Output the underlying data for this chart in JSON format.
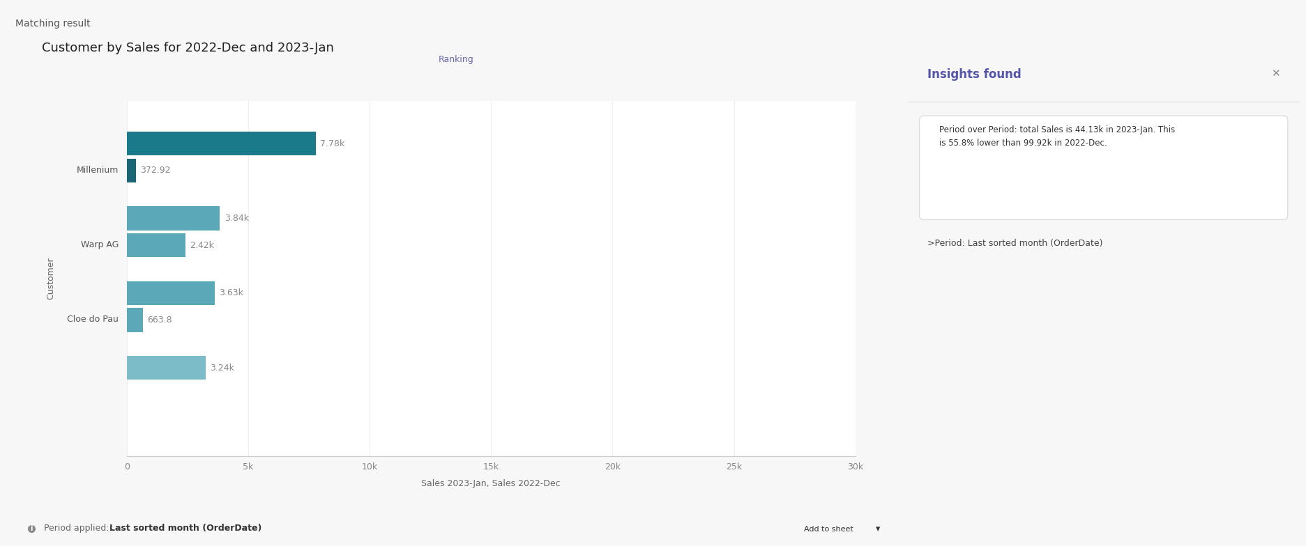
{
  "title": "Customer by Sales for 2022-Dec and 2023-Jan",
  "ranking_label": "Ranking",
  "xlabel": "Sales 2023-Jan, Sales 2022-Dec",
  "ylabel": "Customer",
  "customers": [
    "Millenium",
    "Warp AG",
    "Cloe do Pau",
    ""
  ],
  "sales_dec": [
    7780,
    3840,
    3630,
    3240
  ],
  "sales_jan": [
    372.92,
    2420,
    663.8,
    0
  ],
  "labels_dec": [
    "7.78k",
    "3.84k",
    "3.63k",
    "3.24k"
  ],
  "labels_jan": [
    "372.92",
    "2.42k",
    "663.8",
    ""
  ],
  "color_millenium_dec": "#1a7a8a",
  "color_millenium_jan": "#1a6575",
  "color_warpag_dec": "#5ba8b8",
  "color_warpag_jan": "#5ba8b8",
  "color_cloedopau_dec": "#5ba8b8",
  "color_cloedopau_jan": "#5ba8b8",
  "color_4th_dec": "#7bbcc8",
  "xlim": [
    0,
    30000
  ],
  "xticks": [
    0,
    5000,
    10000,
    15000,
    20000,
    25000,
    30000
  ],
  "xtick_labels": [
    "0",
    "5k",
    "10k",
    "15k",
    "20k",
    "25k",
    "30k"
  ],
  "background_color": "#ffffff",
  "outer_bg": "#f7f7f7",
  "border_color": "#5555bb",
  "matching_result_text": "Matching result",
  "insights_title": "Insights found",
  "insights_text": "Period over Period: total Sales is 44.13k in 2023-Jan. This\nis 55.8% lower than 99.92k in 2022-Dec.",
  "insights_sub": ">Period: Last sorted month (OrderDate)",
  "period_label": "Period applied: ",
  "period_bold": "Last sorted month (OrderDate)",
  "bar_height": 0.32,
  "title_fontsize": 13,
  "axis_fontsize": 9,
  "tick_fontsize": 9,
  "label_fontsize": 9
}
